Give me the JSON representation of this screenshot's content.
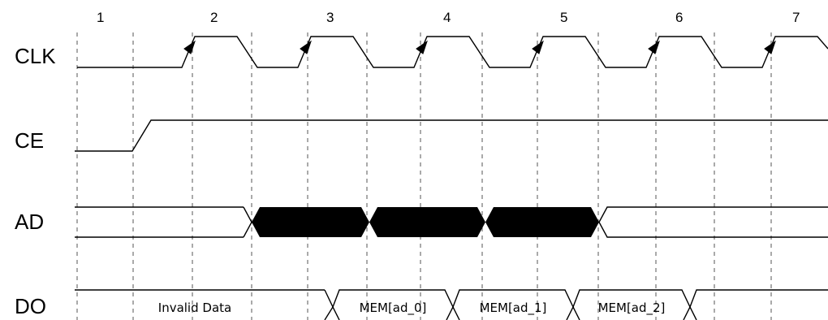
{
  "cycles": [
    "1",
    "2",
    "3",
    "4",
    "5",
    "6",
    "7"
  ],
  "signals": {
    "clk": "CLK",
    "ce": "CE",
    "ad": "AD",
    "do": "DO"
  },
  "ad_values": [
    "ad_0",
    "ad_1",
    "ad_2"
  ],
  "do_values": {
    "invalid": "Invalid Data",
    "mem": [
      "MEM[ad_0]",
      "MEM[ad_1]",
      "MEM[ad_2]"
    ]
  }
}
